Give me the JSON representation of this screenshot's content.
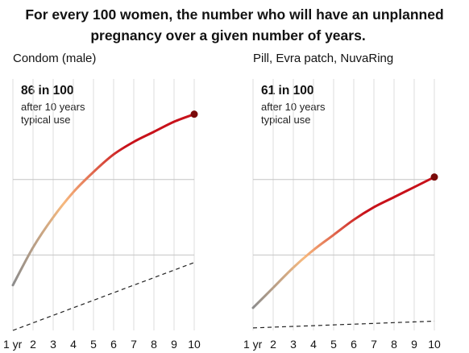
{
  "header": {
    "title_line1": "For every 100 women, the number who will have an unplanned",
    "title_line2": "pregnancy over a given number of years."
  },
  "colors": {
    "curve_start": "#8c8c8c",
    "curve_mid": "#f7b97e",
    "curve_end": "#c8111a",
    "endpoint": "#7a0a0a",
    "dashed_line": "#222222",
    "grid": "#dddddd"
  },
  "chart_data": [
    {
      "type": "line",
      "title": "Condom (male)",
      "callout": {
        "value": "86 in 100",
        "line1": "after 10 years",
        "line2": "typical use"
      },
      "x_tick_labels": [
        "1 yr",
        "2",
        "3",
        "4",
        "5",
        "6",
        "7",
        "8",
        "9",
        "10"
      ],
      "x": [
        1,
        2,
        3,
        4,
        5,
        6,
        7,
        8,
        9,
        10
      ],
      "series": [
        {
          "style": "solid-gradient",
          "values": [
            18,
            33,
            45,
            55,
            63,
            70,
            75,
            79,
            83,
            86
          ]
        },
        {
          "style": "dashed",
          "values": [
            0,
            3,
            6,
            9,
            12,
            15,
            18,
            21,
            24,
            27
          ]
        }
      ],
      "ylim": [
        0,
        100
      ],
      "y_gridlines": [
        30,
        60
      ]
    },
    {
      "type": "line",
      "title": "Pill, Evra patch, NuvaRing",
      "callout": {
        "value": "61 in 100",
        "line1": "after 10 years",
        "line2": "typical use"
      },
      "x_tick_labels": [
        "1 yr",
        "2",
        "3",
        "4",
        "5",
        "6",
        "7",
        "8",
        "9",
        "10"
      ],
      "x": [
        1,
        2,
        3,
        4,
        5,
        6,
        7,
        8,
        9,
        10
      ],
      "series": [
        {
          "style": "solid-gradient",
          "values": [
            9,
            17,
            25,
            32,
            38,
            44,
            49,
            53,
            57,
            61
          ]
        },
        {
          "style": "dashed",
          "values": [
            1,
            1.3,
            1.6,
            1.9,
            2.2,
            2.5,
            2.8,
            3.1,
            3.4,
            3.7
          ]
        }
      ],
      "ylim": [
        0,
        100
      ],
      "y_gridlines": [
        30,
        60
      ]
    }
  ]
}
